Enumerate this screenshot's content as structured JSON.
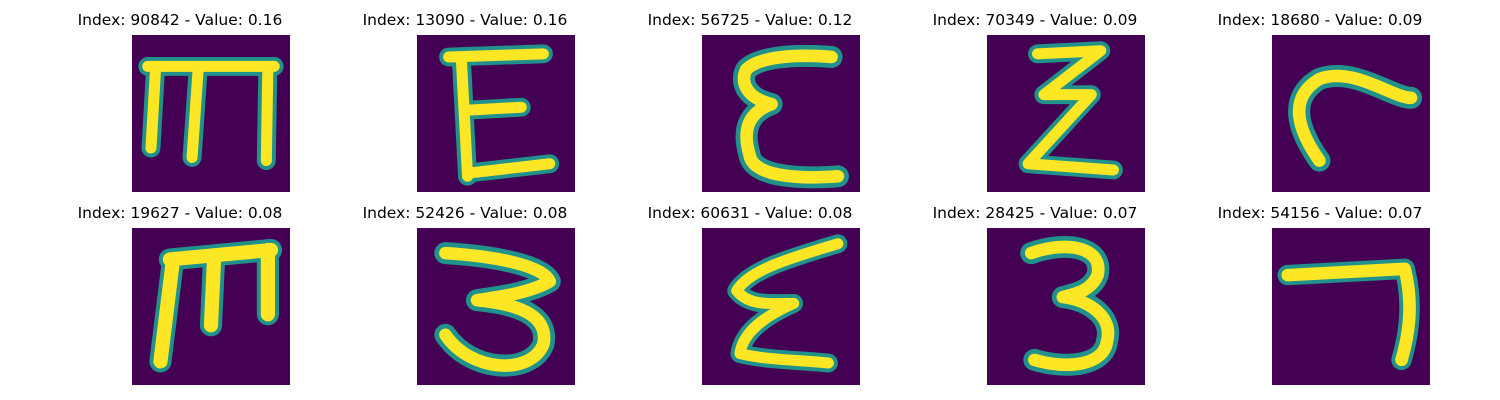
{
  "colors": {
    "background": "#440154",
    "edge": "#21918c",
    "stroke": "#fde725"
  },
  "panels": [
    {
      "index": "90842",
      "value": "0.16",
      "glyph": "m-shape"
    },
    {
      "index": "13090",
      "value": "0.16",
      "glyph": "epsilon-shape"
    },
    {
      "index": "56725",
      "value": "0.12",
      "glyph": "epsilon-shape"
    },
    {
      "index": "70349",
      "value": "0.09",
      "glyph": "xi-shape"
    },
    {
      "index": "18680",
      "value": "0.09",
      "glyph": "hook-shape"
    },
    {
      "index": "19627",
      "value": "0.08",
      "glyph": "m-shape"
    },
    {
      "index": "52426",
      "value": "0.08",
      "glyph": "three-shape"
    },
    {
      "index": "60631",
      "value": "0.08",
      "glyph": "xi-shape"
    },
    {
      "index": "28425",
      "value": "0.07",
      "glyph": "three-shape"
    },
    {
      "index": "54156",
      "value": "0.07",
      "glyph": "seven-shape"
    }
  ]
}
